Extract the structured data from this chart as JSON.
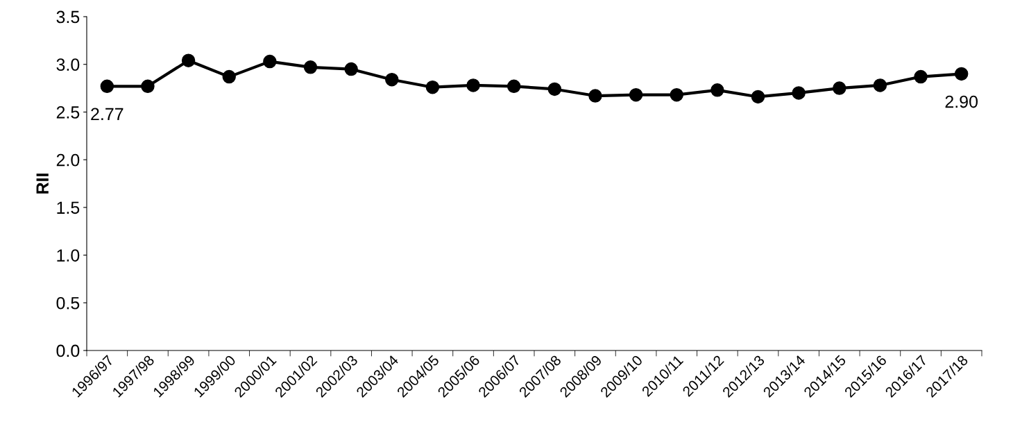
{
  "chart_data": {
    "type": "line",
    "ylabel": "RII",
    "categories": [
      "1996/97",
      "1997/98",
      "1998/99",
      "1999/00",
      "2000/01",
      "2001/02",
      "2002/03",
      "2003/04",
      "2004/05",
      "2005/06",
      "2006/07",
      "2007/08",
      "2008/09",
      "2009/10",
      "2010/11",
      "2011/12",
      "2012/13",
      "2013/14",
      "2014/15",
      "2015/16",
      "2016/17",
      "2017/18"
    ],
    "series": [
      {
        "color": "#000000",
        "values": [
          2.77,
          2.77,
          3.04,
          2.87,
          3.03,
          2.97,
          2.95,
          2.84,
          2.76,
          2.78,
          2.77,
          2.74,
          2.67,
          2.68,
          2.68,
          2.73,
          2.66,
          2.7,
          2.75,
          2.78,
          2.87,
          2.9
        ],
        "value_labels": [
          "2.77",
          null,
          null,
          null,
          null,
          null,
          null,
          null,
          null,
          null,
          null,
          null,
          null,
          null,
          null,
          null,
          null,
          null,
          null,
          null,
          null,
          "2.90"
        ]
      }
    ],
    "ylim": [
      0,
      3.5
    ],
    "yticks": [
      {
        "value": 0,
        "label": "0.0"
      },
      {
        "value": 0.5,
        "label": "0.5"
      },
      {
        "value": 1,
        "label": "1.0"
      },
      {
        "value": 1.5,
        "label": "1.5"
      },
      {
        "value": 2,
        "label": "2.0"
      },
      {
        "value": 2.5,
        "label": "2.5"
      },
      {
        "value": 3,
        "label": "3.0"
      },
      {
        "value": 3.5,
        "label": "3.5"
      }
    ],
    "grid": false,
    "marker": "circle",
    "line_style": "solid"
  }
}
